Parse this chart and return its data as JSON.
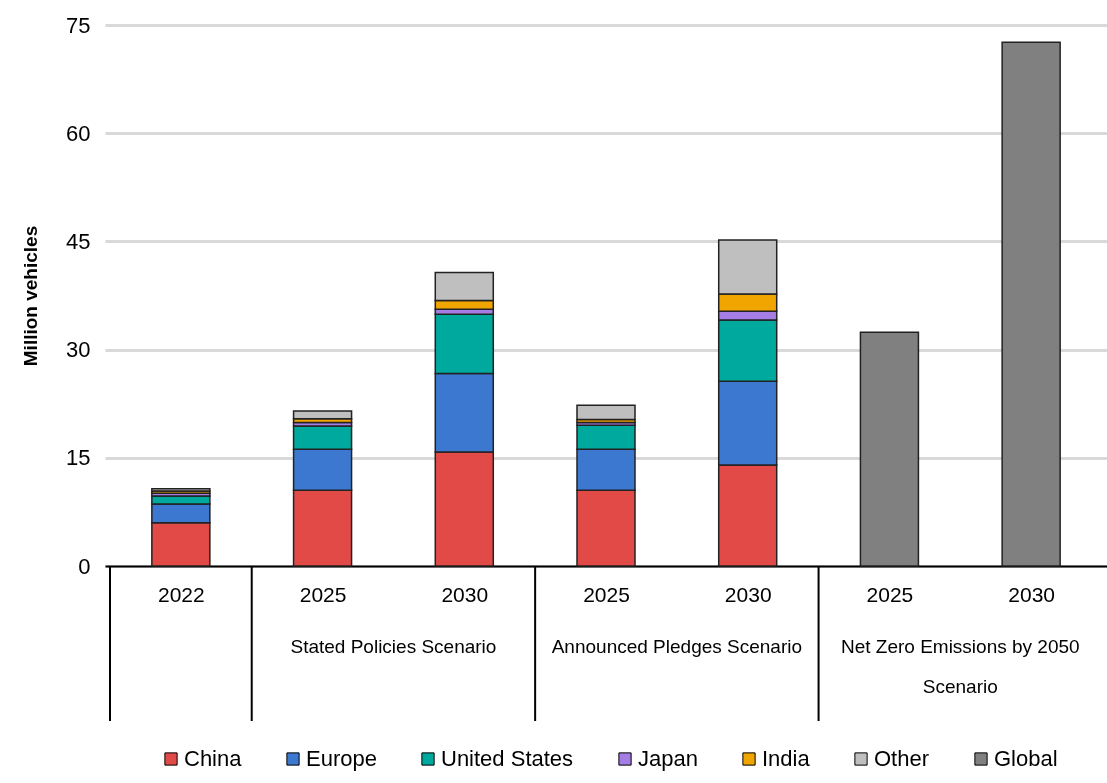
{
  "chart_data": {
    "type": "bar",
    "stacked": true,
    "ylabel": "Million vehicles",
    "categories": [
      "2022",
      "2025",
      "2030",
      "2025",
      "2030",
      "2025",
      "2030"
    ],
    "series": [
      {
        "name": "China",
        "color": "#e24a47",
        "values": [
          6.0,
          10.5,
          15.8,
          10.5,
          14.0,
          null,
          null
        ]
      },
      {
        "name": "Europe",
        "color": "#3c78d0",
        "values": [
          2.6,
          5.7,
          10.9,
          5.7,
          11.6,
          null,
          null
        ]
      },
      {
        "name": "United States",
        "color": "#00a99d",
        "values": [
          1.1,
          3.2,
          8.2,
          3.3,
          8.5,
          null,
          null
        ]
      },
      {
        "name": "Japan",
        "color": "#a57de4",
        "values": [
          0.4,
          0.5,
          0.7,
          0.4,
          1.2,
          null,
          null
        ]
      },
      {
        "name": "India",
        "color": "#f0a500",
        "values": [
          0.3,
          0.5,
          1.2,
          0.4,
          2.4,
          null,
          null
        ]
      },
      {
        "name": "Other",
        "color": "#bfbfbf",
        "values": [
          0.3,
          1.1,
          3.9,
          2.0,
          7.5,
          null,
          null
        ]
      },
      {
        "name": "Global",
        "color": "#808080",
        "values": [
          null,
          null,
          null,
          null,
          null,
          32.4,
          72.6
        ]
      }
    ],
    "ylim": [
      0,
      75
    ],
    "yticks": [
      0,
      15,
      30,
      45,
      60,
      75
    ],
    "grid": "y",
    "legend": "bottom",
    "annotations": [
      "Stated Policies Scenario",
      "Announced Pledges Scenario",
      "Net Zero Emissions by 2050 Scenario"
    ]
  }
}
